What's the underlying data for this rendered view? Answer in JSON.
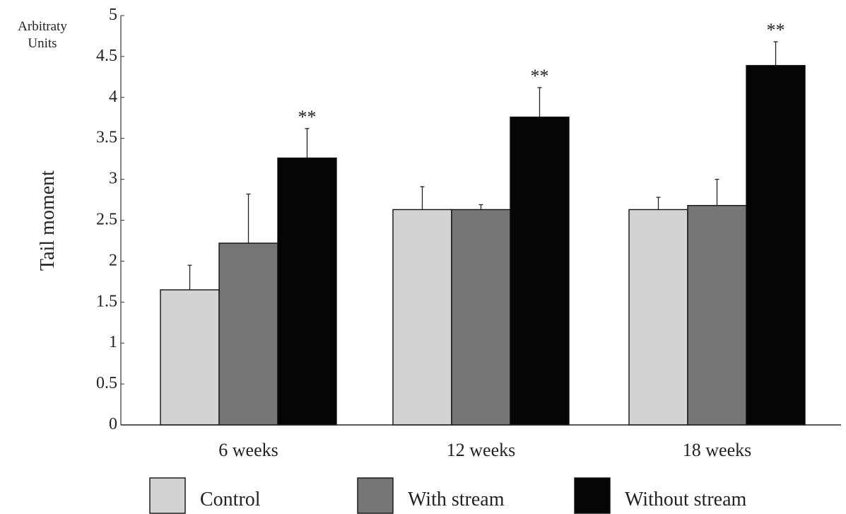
{
  "chart_data": {
    "type": "bar",
    "ylabel": "Tail moment",
    "yunit_label": [
      "Arbitraty",
      "Units"
    ],
    "ylim": [
      0,
      5
    ],
    "yticks": [
      {
        "value": 0,
        "label": "0"
      },
      {
        "value": 0.5,
        "label": "0.5"
      },
      {
        "value": 1,
        "label": "1"
      },
      {
        "value": 1.5,
        "label": "1.5"
      },
      {
        "value": 2,
        "label": "2"
      },
      {
        "value": 2.5,
        "label": "2.5"
      },
      {
        "value": 3,
        "label": "3"
      },
      {
        "value": 3.5,
        "label": "3.5"
      },
      {
        "value": 4,
        "label": "4"
      },
      {
        "value": 4.5,
        "label": "4.5"
      },
      {
        "value": 5,
        "label": "5"
      }
    ],
    "categories": [
      "6 weeks",
      "12 weeks",
      "18 weeks"
    ],
    "series": [
      {
        "name": "Control",
        "color": "#d3d3d3",
        "values": [
          1.65,
          2.63,
          2.63
        ],
        "errors": [
          0.3,
          0.28,
          0.15
        ]
      },
      {
        "name": "With stream",
        "color": "#767676",
        "values": [
          2.22,
          2.63,
          2.68
        ],
        "errors": [
          0.6,
          0.06,
          0.32
        ]
      },
      {
        "name": "Without stream",
        "color": "#050505",
        "values": [
          3.26,
          3.76,
          4.39
        ],
        "errors": [
          0.36,
          0.36,
          0.29
        ]
      }
    ],
    "annotations": [
      {
        "category": "6 weeks",
        "series": "Without stream",
        "text": "**"
      },
      {
        "category": "12 weeks",
        "series": "Without stream",
        "text": "**"
      },
      {
        "category": "18 weeks",
        "series": "Without stream",
        "text": "**"
      }
    ],
    "legend": {
      "position": "bottom"
    },
    "grid": false
  }
}
